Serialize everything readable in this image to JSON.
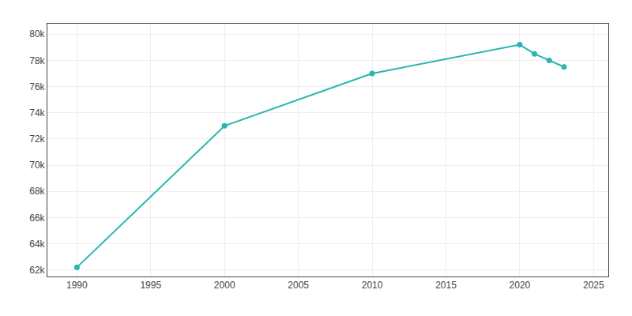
{
  "chart_data": {
    "type": "line",
    "x": [
      1990,
      2000,
      2010,
      2020,
      2021,
      2022,
      2023
    ],
    "values": [
      62200,
      73000,
      77000,
      79200,
      78500,
      78000,
      77500
    ],
    "color": "#2ab5b0",
    "marker": "circle",
    "line_style": "solid",
    "xlim": [
      1988,
      2026
    ],
    "ylim": [
      61500,
      80800
    ],
    "xticks": [
      1990,
      1995,
      2000,
      2005,
      2010,
      2015,
      2020,
      2025
    ],
    "yticks": [
      {
        "value": 62000,
        "label": "62k"
      },
      {
        "value": 64000,
        "label": "64k"
      },
      {
        "value": 66000,
        "label": "66k"
      },
      {
        "value": 68000,
        "label": "68k"
      },
      {
        "value": 70000,
        "label": "70k"
      },
      {
        "value": 72000,
        "label": "72k"
      },
      {
        "value": 74000,
        "label": "74k"
      },
      {
        "value": 76000,
        "label": "76k"
      },
      {
        "value": 78000,
        "label": "78k"
      },
      {
        "value": 80000,
        "label": "80k"
      }
    ],
    "grid": true
  }
}
